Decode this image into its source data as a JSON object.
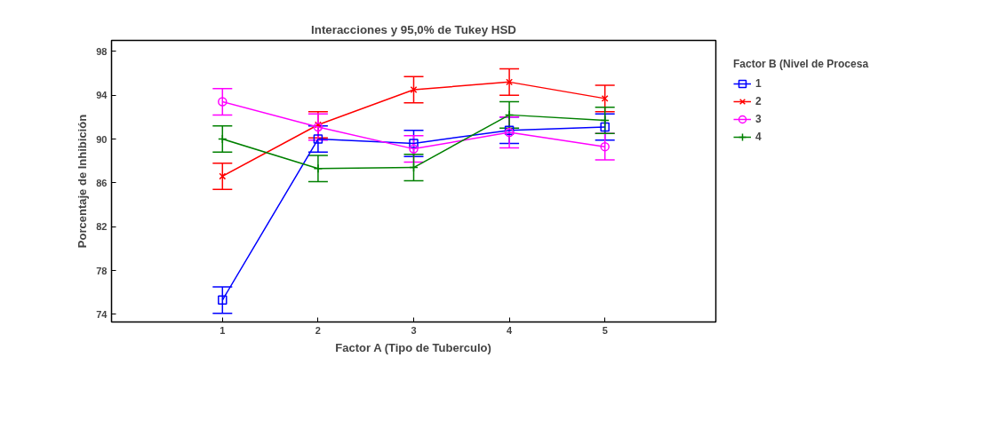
{
  "chart_data": {
    "type": "line",
    "title": "Interacciones y 95,0% de Tukey HSD",
    "xlabel": "Factor A (Tipo de Tuberculo)",
    "ylabel": "Porcentaje de Inhibición",
    "legend_title": "Factor B (Nivel de Procesa",
    "x": [
      1,
      2,
      3,
      4,
      5
    ],
    "xlim": [
      -0.16,
      6.16
    ],
    "xticks": [
      1,
      2,
      3,
      4,
      5
    ],
    "ylim": [
      73.3,
      99
    ],
    "yticks": [
      74,
      78,
      82,
      86,
      90,
      94,
      98
    ],
    "grid": false,
    "legend": "right",
    "series": [
      {
        "name": "1",
        "color": "#0000ff",
        "marker": "square",
        "values": [
          75.3,
          90.0,
          89.6,
          90.8,
          91.1
        ],
        "errors": [
          1.2,
          1.2,
          1.2,
          1.2,
          1.2
        ]
      },
      {
        "name": "2",
        "color": "#ff0000",
        "marker": "cross",
        "values": [
          86.6,
          91.3,
          94.5,
          95.2,
          93.7
        ],
        "errors": [
          1.2,
          1.2,
          1.2,
          1.2,
          1.2
        ]
      },
      {
        "name": "3",
        "color": "#ff00ff",
        "marker": "circle",
        "values": [
          93.4,
          91.1,
          89.1,
          90.6,
          89.3
        ],
        "errors": [
          1.2,
          1.2,
          1.2,
          1.4,
          1.2
        ]
      },
      {
        "name": "4",
        "color": "#008000",
        "marker": "plus",
        "values": [
          90.0,
          87.3,
          87.4,
          92.2,
          91.7
        ],
        "errors": [
          1.2,
          1.2,
          1.2,
          1.2,
          1.2
        ]
      }
    ]
  }
}
